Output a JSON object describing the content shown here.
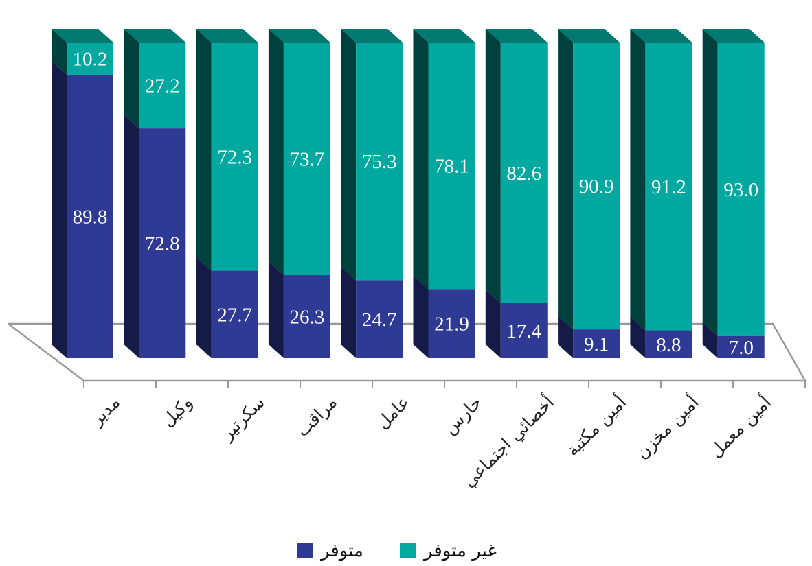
{
  "chart_data": {
    "type": "bar",
    "stacked": true,
    "percent_stacked": true,
    "three_d": true,
    "categories": [
      "مدير",
      "وكيل",
      "سكرتير",
      "مراقب",
      "عامل",
      "حارس",
      "أخصائي اجتماعي",
      "أمين مكتبة",
      "أمين مخزن",
      "أمين معمل"
    ],
    "series": [
      {
        "name": "متوفر",
        "values": [
          89.8,
          72.8,
          27.7,
          26.3,
          24.7,
          21.9,
          17.4,
          9.1,
          8.8,
          7.0
        ]
      },
      {
        "name": "غير متوفر",
        "values": [
          10.2,
          27.2,
          72.3,
          73.7,
          75.3,
          78.1,
          82.6,
          90.9,
          91.2,
          93.0
        ]
      }
    ],
    "value_labels": {
      "متوفر": [
        "89.8",
        "72.8",
        "27.7",
        "26.3",
        "24.7",
        "21.9",
        "17.4",
        "9.1",
        "8.8",
        "7.0"
      ],
      "غير متوفر": [
        "10.2",
        "27.2",
        "72.3",
        "73.7",
        "75.3",
        "78.1",
        "82.6",
        "90.9",
        "91.2",
        "93.0"
      ]
    },
    "ylim": [
      0,
      100
    ],
    "title": "",
    "xlabel": "",
    "ylabel": "",
    "legend_position": "bottom-center",
    "colors": {
      "available_front": "#2E3A94",
      "available_side": "#151B47",
      "unavailable_front": "#00A8A0",
      "unavailable_side": "#00403D",
      "unavailable_top": "#007A70",
      "floor_line": "#999999",
      "value_text": "#FFFFFF"
    }
  }
}
